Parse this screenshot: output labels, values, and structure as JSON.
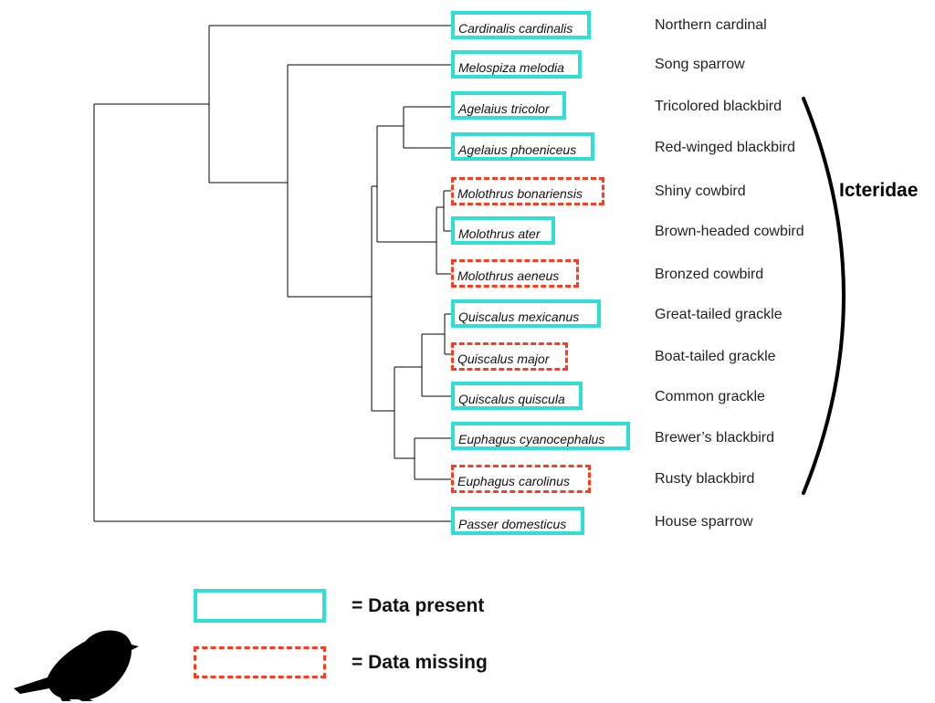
{
  "taxa": [
    {
      "id": "cardinalis",
      "scientific": "Cardinalis cardinalis",
      "common": "Northern cardinal",
      "status": "present"
    },
    {
      "id": "melospiza",
      "scientific": "Melospiza melodia",
      "common": "Song sparrow",
      "status": "present"
    },
    {
      "id": "agelaius-tricolor",
      "scientific": "Agelaius tricolor",
      "common": "Tricolored blackbird",
      "status": "present"
    },
    {
      "id": "agelaius-phoeniceus",
      "scientific": "Agelaius phoeniceus",
      "common": "Red-winged blackbird",
      "status": "present"
    },
    {
      "id": "molothrus-bonariensis",
      "scientific": "Molothrus bonariensis",
      "common": "Shiny cowbird",
      "status": "missing"
    },
    {
      "id": "molothrus-ater",
      "scientific": "Molothrus ater",
      "common": "Brown-headed cowbird",
      "status": "present"
    },
    {
      "id": "molothrus-aeneus",
      "scientific": "Molothrus aeneus",
      "common": "Bronzed cowbird",
      "status": "missing"
    },
    {
      "id": "quiscalus-mexicanus",
      "scientific": "Quiscalus mexicanus",
      "common": "Great-tailed grackle",
      "status": "present"
    },
    {
      "id": "quiscalus-major",
      "scientific": "Quiscalus major",
      "common": "Boat-tailed grackle",
      "status": "missing"
    },
    {
      "id": "quiscalus-quiscula",
      "scientific": "Quiscalus quiscula",
      "common": "Common grackle",
      "status": "present"
    },
    {
      "id": "euphagus-cyanocephalus",
      "scientific": "Euphagus cyanocephalus",
      "common": "Brewer’s blackbird",
      "status": "present"
    },
    {
      "id": "euphagus-carolinus",
      "scientific": "Euphagus carolinus",
      "common": "Rusty blackbird",
      "status": "missing"
    },
    {
      "id": "passer",
      "scientific": "Passer domesticus",
      "common": "House sparrow",
      "status": "present"
    }
  ],
  "clade": {
    "label": "Icteridae"
  },
  "legend": {
    "present_label": "= Data present",
    "missing_label": "= Data missing"
  },
  "colors": {
    "present": "#2ee0d3",
    "missing": "#ff3b1f",
    "lines": "#000000"
  },
  "icon": "bird-silhouette-icon"
}
